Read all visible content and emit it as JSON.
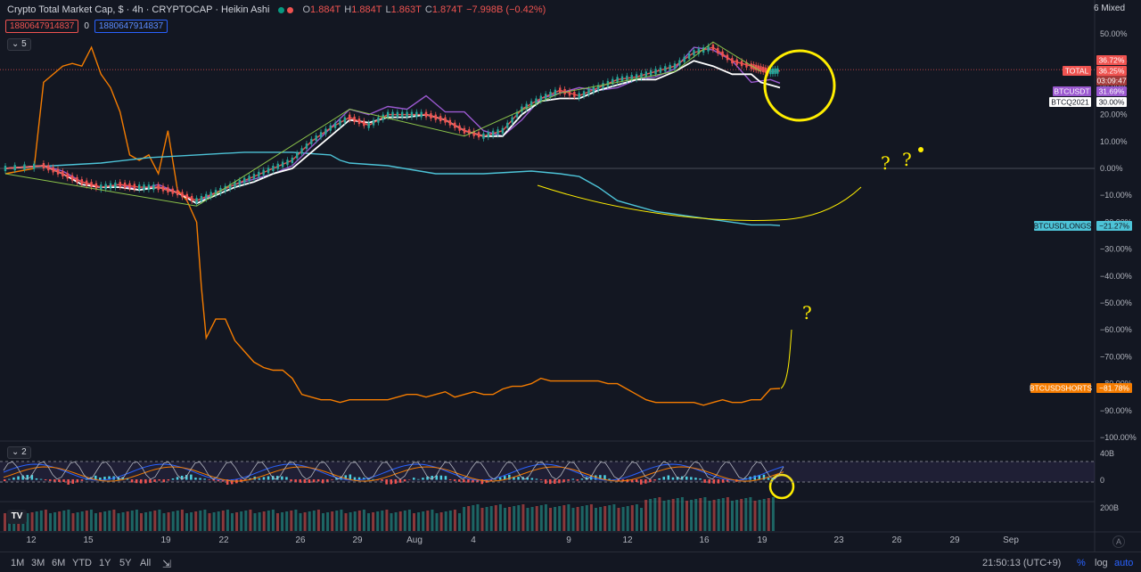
{
  "header": {
    "title": "Crypto Total Market Cap, $ · 4h · CRYPTOCAP · Heikin Ashi",
    "ohlc": [
      {
        "k": "O",
        "v": "1.884T"
      },
      {
        "k": "H",
        "v": "1.884T"
      },
      {
        "k": "L",
        "v": "1.863T"
      },
      {
        "k": "C",
        "v": "1.874T"
      },
      {
        "k": "",
        "v": "−7.998B (−0.42%)"
      }
    ],
    "box_red": "1880647914837",
    "zero": "0",
    "box_blue": "1880647914837",
    "pane1_collapse": "5",
    "pane2_collapse": "2",
    "scale_mode": "6 Mixed"
  },
  "chart_data": {
    "type": "line",
    "x_tick_labels": [
      "12",
      "15",
      "19",
      "22",
      "26",
      "29",
      "Aug",
      "4",
      "9",
      "12",
      "16",
      "19",
      "23",
      "26",
      "29",
      "Sep"
    ],
    "y_tick_labels": [
      "50.00%",
      "40.00%",
      "30.00%",
      "20.00%",
      "10.00%",
      "0.00%",
      "−10.00%",
      "−20.00%",
      "−30.00%",
      "−40.00%",
      "−50.00%",
      "−60.00%",
      "−70.00%",
      "−80.00%",
      "−90.00%",
      "−100.00%"
    ],
    "y_ticks": [
      50,
      40,
      30,
      20,
      10,
      0,
      -10,
      -20,
      -30,
      -40,
      -50,
      -60,
      -70,
      -80,
      -90,
      -100
    ],
    "ylim": [
      -100,
      55
    ],
    "series": [
      {
        "name": "BTCUSDSHORTS",
        "color": "#f57c00",
        "last_label": "−81.78%",
        "points": [
          [
            0,
            -2
          ],
          [
            3,
            0
          ],
          [
            4,
            32
          ],
          [
            6,
            38
          ],
          [
            7,
            39
          ],
          [
            8,
            38
          ],
          [
            9,
            45
          ],
          [
            10,
            35
          ],
          [
            11,
            30
          ],
          [
            12,
            21
          ],
          [
            13,
            5
          ],
          [
            14,
            3
          ],
          [
            15,
            5
          ],
          [
            16,
            -2
          ],
          [
            17,
            14
          ],
          [
            18,
            -8
          ],
          [
            19,
            -12
          ],
          [
            20,
            -20
          ],
          [
            20.5,
            -44
          ],
          [
            21,
            -63
          ],
          [
            22,
            -56
          ],
          [
            23,
            -56
          ],
          [
            24,
            -64
          ],
          [
            25,
            -68
          ],
          [
            26,
            -72
          ],
          [
            27,
            -74
          ],
          [
            28,
            -75
          ],
          [
            29,
            -75
          ],
          [
            30,
            -78
          ],
          [
            31,
            -84
          ],
          [
            32,
            -85
          ],
          [
            33,
            -86
          ],
          [
            34,
            -86
          ],
          [
            35,
            -87
          ],
          [
            36,
            -86
          ],
          [
            37,
            -86
          ],
          [
            38,
            -86
          ],
          [
            39,
            -86
          ],
          [
            40,
            -86
          ],
          [
            41,
            -85
          ],
          [
            42,
            -84
          ],
          [
            43,
            -84
          ],
          [
            44,
            -85
          ],
          [
            45,
            -84
          ],
          [
            46,
            -83
          ],
          [
            47,
            -85
          ],
          [
            48,
            -84
          ],
          [
            49,
            -83
          ],
          [
            50,
            -84
          ],
          [
            51,
            -84
          ],
          [
            52,
            -82
          ],
          [
            53,
            -81
          ],
          [
            54,
            -81
          ],
          [
            55,
            -80
          ],
          [
            56,
            -78
          ],
          [
            57,
            -79
          ],
          [
            58,
            -79
          ],
          [
            59,
            -79
          ],
          [
            60,
            -79
          ],
          [
            61,
            -79
          ],
          [
            62,
            -79
          ],
          [
            63,
            -80
          ],
          [
            64,
            -80
          ],
          [
            65,
            -82
          ],
          [
            66,
            -84
          ],
          [
            67,
            -86
          ],
          [
            68,
            -87
          ],
          [
            69,
            -87
          ],
          [
            70,
            -87
          ],
          [
            71,
            -87
          ],
          [
            72,
            -87
          ],
          [
            73,
            -88
          ],
          [
            74,
            -87
          ],
          [
            75,
            -86
          ],
          [
            76,
            -87
          ],
          [
            77,
            -87
          ],
          [
            78,
            -86
          ],
          [
            79,
            -86
          ],
          [
            80,
            -82
          ],
          [
            81,
            -81.78
          ]
        ]
      },
      {
        "name": "BTCUSDLONGS",
        "color": "#4dc3d7",
        "last_label": "−21.27%",
        "points": [
          [
            0,
            0
          ],
          [
            5,
            1
          ],
          [
            10,
            2
          ],
          [
            15,
            4
          ],
          [
            20,
            5
          ],
          [
            25,
            6
          ],
          [
            30,
            6
          ],
          [
            34,
            5
          ],
          [
            35,
            3
          ],
          [
            36,
            2
          ],
          [
            40,
            1
          ],
          [
            45,
            -2
          ],
          [
            50,
            -2
          ],
          [
            55,
            -1
          ],
          [
            58,
            -2
          ],
          [
            60,
            -3
          ],
          [
            62,
            -7
          ],
          [
            64,
            -12
          ],
          [
            66,
            -14
          ],
          [
            68,
            -16
          ],
          [
            70,
            -17
          ],
          [
            72,
            -18
          ],
          [
            74,
            -19
          ],
          [
            76,
            -20
          ],
          [
            78,
            -21
          ],
          [
            80,
            -21
          ],
          [
            81,
            -21.27
          ]
        ]
      },
      {
        "name": "BTCUSDT",
        "color": "#9b59d0",
        "last_label": "31.69%",
        "points": [
          [
            0,
            0
          ],
          [
            4,
            1
          ],
          [
            6,
            -1
          ],
          [
            8,
            -5
          ],
          [
            10,
            -7
          ],
          [
            12,
            -6
          ],
          [
            14,
            -8
          ],
          [
            16,
            -6
          ],
          [
            18,
            -9
          ],
          [
            20,
            -13
          ],
          [
            22,
            -9
          ],
          [
            24,
            -6
          ],
          [
            26,
            -4
          ],
          [
            28,
            -2
          ],
          [
            30,
            1
          ],
          [
            32,
            8
          ],
          [
            34,
            15
          ],
          [
            36,
            22
          ],
          [
            38,
            20
          ],
          [
            40,
            23
          ],
          [
            42,
            22
          ],
          [
            44,
            27
          ],
          [
            46,
            21
          ],
          [
            48,
            21
          ],
          [
            50,
            14
          ],
          [
            52,
            12
          ],
          [
            54,
            18
          ],
          [
            56,
            26
          ],
          [
            58,
            28
          ],
          [
            60,
            30
          ],
          [
            62,
            29
          ],
          [
            64,
            30
          ],
          [
            66,
            33
          ],
          [
            68,
            34
          ],
          [
            70,
            37
          ],
          [
            72,
            45
          ],
          [
            74,
            44
          ],
          [
            76,
            40
          ],
          [
            78,
            32
          ],
          [
            80,
            33
          ],
          [
            81,
            31.69
          ]
        ]
      },
      {
        "name": "BTCQ2021",
        "color": "#ffffff",
        "last_label": "30.00%",
        "points": [
          [
            0,
            0
          ],
          [
            4,
            1
          ],
          [
            6,
            -2
          ],
          [
            8,
            -6
          ],
          [
            10,
            -7
          ],
          [
            12,
            -7
          ],
          [
            14,
            -8
          ],
          [
            16,
            -7
          ],
          [
            18,
            -9
          ],
          [
            20,
            -13
          ],
          [
            22,
            -10
          ],
          [
            24,
            -7
          ],
          [
            26,
            -5
          ],
          [
            28,
            -2
          ],
          [
            30,
            0
          ],
          [
            32,
            6
          ],
          [
            34,
            12
          ],
          [
            36,
            18
          ],
          [
            38,
            17
          ],
          [
            40,
            19
          ],
          [
            42,
            19
          ],
          [
            44,
            20
          ],
          [
            46,
            18
          ],
          [
            48,
            14
          ],
          [
            50,
            12
          ],
          [
            52,
            12
          ],
          [
            54,
            20
          ],
          [
            56,
            25
          ],
          [
            58,
            26
          ],
          [
            60,
            26
          ],
          [
            62,
            29
          ],
          [
            64,
            31
          ],
          [
            66,
            33
          ],
          [
            68,
            33
          ],
          [
            70,
            36
          ],
          [
            72,
            40
          ],
          [
            74,
            38
          ],
          [
            76,
            35
          ],
          [
            78,
            35
          ],
          [
            79,
            32
          ],
          [
            80,
            31
          ],
          [
            81,
            30
          ]
        ]
      },
      {
        "name": "TOTAL",
        "color": "#ef5350",
        "last_label": "36.25%",
        "candles": true,
        "points": [
          [
            0,
            0
          ],
          [
            4,
            1
          ],
          [
            6,
            -2
          ],
          [
            8,
            -5
          ],
          [
            10,
            -7
          ],
          [
            12,
            -6
          ],
          [
            14,
            -7
          ],
          [
            16,
            -7
          ],
          [
            18,
            -9
          ],
          [
            20,
            -12
          ],
          [
            22,
            -9
          ],
          [
            24,
            -6
          ],
          [
            26,
            -3
          ],
          [
            28,
            0
          ],
          [
            30,
            3
          ],
          [
            32,
            10
          ],
          [
            34,
            15
          ],
          [
            36,
            19
          ],
          [
            38,
            16
          ],
          [
            40,
            20
          ],
          [
            42,
            20
          ],
          [
            44,
            20
          ],
          [
            46,
            18
          ],
          [
            48,
            14
          ],
          [
            50,
            12
          ],
          [
            52,
            14
          ],
          [
            54,
            22
          ],
          [
            56,
            26
          ],
          [
            58,
            29
          ],
          [
            60,
            27
          ],
          [
            62,
            30
          ],
          [
            64,
            33
          ],
          [
            66,
            34
          ],
          [
            68,
            36
          ],
          [
            70,
            38
          ],
          [
            72,
            43
          ],
          [
            74,
            45
          ],
          [
            76,
            40
          ],
          [
            78,
            38
          ],
          [
            79,
            37
          ],
          [
            80,
            36
          ],
          [
            81,
            36.25
          ]
        ]
      }
    ],
    "price_labels": [
      {
        "text": "36.72%",
        "color": "#ef5350"
      },
      {
        "text": "TOTAL",
        "color": "#ef5350"
      },
      {
        "text": "36.25%",
        "color": "#ef5350"
      },
      {
        "text": "03:09:47",
        "color": "#ef5350"
      },
      {
        "text": "BTCUSDT",
        "color": "#9b59d0"
      },
      {
        "text": "31.69%",
        "color": "#9b59d0"
      },
      {
        "text": "BTCQ2021",
        "color": "#ffffff"
      },
      {
        "text": "30.00%",
        "color": "#ffffff"
      },
      {
        "text": "BTCUSDLONGS",
        "color": "#4dc3d7"
      },
      {
        "text": "−21.27%",
        "color": "#4dc3d7"
      },
      {
        "text": "BTCUSDSHORTS",
        "color": "#f57c00"
      },
      {
        "text": "−81.78%",
        "color": "#f57c00"
      }
    ],
    "annotations": [
      "?",
      "?",
      "?"
    ],
    "osc_ticks": [
      "40B",
      "0",
      "200B"
    ],
    "grid": false
  },
  "bottom": {
    "timeframes": [
      "1M",
      "3M",
      "6M",
      "YTD",
      "1Y",
      "5Y",
      "All"
    ],
    "time": "21:50:13 (UTC+9)",
    "pct": "%",
    "log": "log",
    "auto": "auto",
    "a_btn": "A"
  },
  "colors": {
    "up": "#26a69a",
    "down": "#ef5350",
    "bg": "#131722",
    "yellow": "#ffee00"
  }
}
